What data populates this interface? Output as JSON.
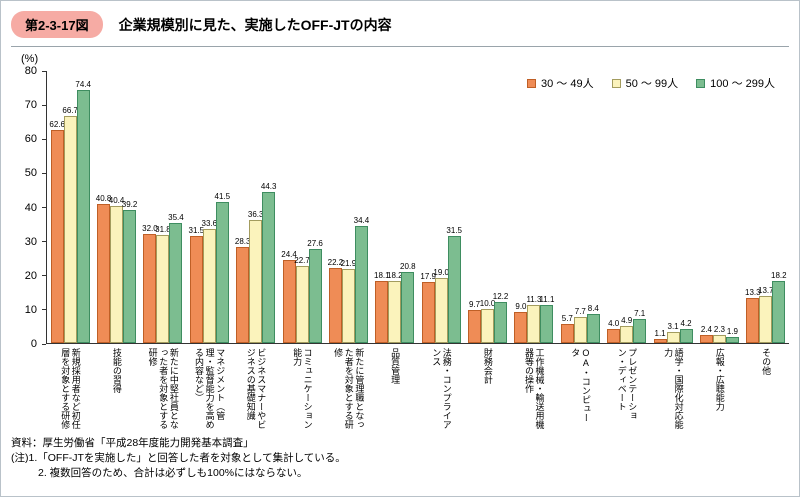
{
  "header": {
    "figure_badge": "第2-3-17図",
    "title": "企業規模別に見た、実施したOFF-JTの内容"
  },
  "chart_data": {
    "type": "bar",
    "title": "企業規模別に見た、実施したOFF-JTの内容",
    "ylabel": "(%)",
    "xlabel": "",
    "ylim": [
      0,
      80
    ],
    "y_ticks": [
      0,
      10,
      20,
      30,
      40,
      50,
      60,
      70,
      80
    ],
    "grid": false,
    "legend_position": "top-right",
    "categories": [
      "新規採用者など初任層を対象とする研修",
      "技能の習得",
      "新たに中堅社員となった者を対象とする研修",
      "マネジメント（管理・監督能力を高める内容など）",
      "ビジネスマナーやビジネスの基礎知識",
      "コミュニケーション能力",
      "新たに管理職となった者を対象とする研修",
      "品質管理",
      "法務・コンプライアンス",
      "財務会計",
      "工作機械・輸送用機器等の操作",
      "OA・コンピュータ",
      "プレゼンテーション・ディベート",
      "語学・国際化対応能力",
      "広報・広聴能力",
      "その他"
    ],
    "series": [
      {
        "name": "30 〜 49人",
        "color": "#EF8C56",
        "border": "#BF5F26",
        "values": [
          62.6,
          40.8,
          32.0,
          31.5,
          28.3,
          24.4,
          22.2,
          18.1,
          17.9,
          9.7,
          9.0,
          5.7,
          4.0,
          1.1,
          2.4,
          13.3
        ]
      },
      {
        "name": "50 〜 99人",
        "color": "#FBF3BC",
        "border": "#A39C5E",
        "values": [
          66.7,
          40.4,
          31.8,
          33.6,
          36.3,
          22.7,
          21.9,
          18.2,
          19.0,
          10.0,
          11.3,
          7.7,
          4.9,
          3.1,
          2.3,
          13.7
        ]
      },
      {
        "name": "100 〜 299人",
        "color": "#7CBD90",
        "border": "#3E8D60",
        "values": [
          74.4,
          39.2,
          35.4,
          41.5,
          44.3,
          27.6,
          34.4,
          20.8,
          31.5,
          12.2,
          11.1,
          8.4,
          7.1,
          4.2,
          1.9,
          18.2
        ]
      }
    ]
  },
  "footer": {
    "source": "資料：厚生労働省「平成28年度能力開発基本調査」",
    "note1": "(注)1.「OFF-JTを実施した」と回答した者を対象として集計している。",
    "note2": "2. 複数回答のため、合計は必ずしも100%にはならない。"
  }
}
